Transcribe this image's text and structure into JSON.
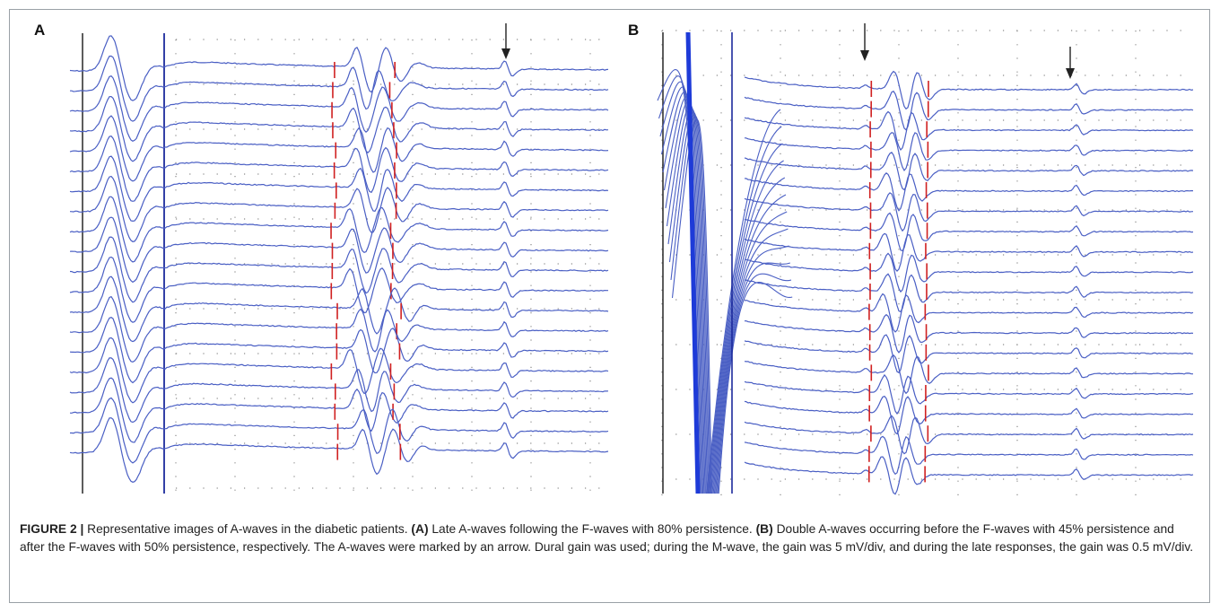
{
  "panels": [
    {
      "id": "A",
      "label": "A"
    },
    {
      "id": "B",
      "label": "B"
    }
  ],
  "caption": {
    "head": "FIGURE 2 |",
    "text_1": " Representative images of A-waves in the diabetic patients. ",
    "a_label": "(A)",
    "text_2": " Late A-waves following the F-waves with 80% persistence. ",
    "b_label": "(B)",
    "text_3": " Double A-waves occurring before the F-waves with 45% persistence and after the F-waves with 50% persistence, respectively. The A-waves were marked by an arrow. Dural gain was used; during the M-wave, the gain was 5 mV/div, and during the late responses, the gain was 0.5 mV/div."
  },
  "colors": {
    "trace": "#4a5fc4",
    "marker": "#d02020",
    "grid_dot": "#8a8a8a",
    "arrow": "#222222",
    "stim_line_a": "#1c2a9c",
    "baseline": "#333333"
  }
}
